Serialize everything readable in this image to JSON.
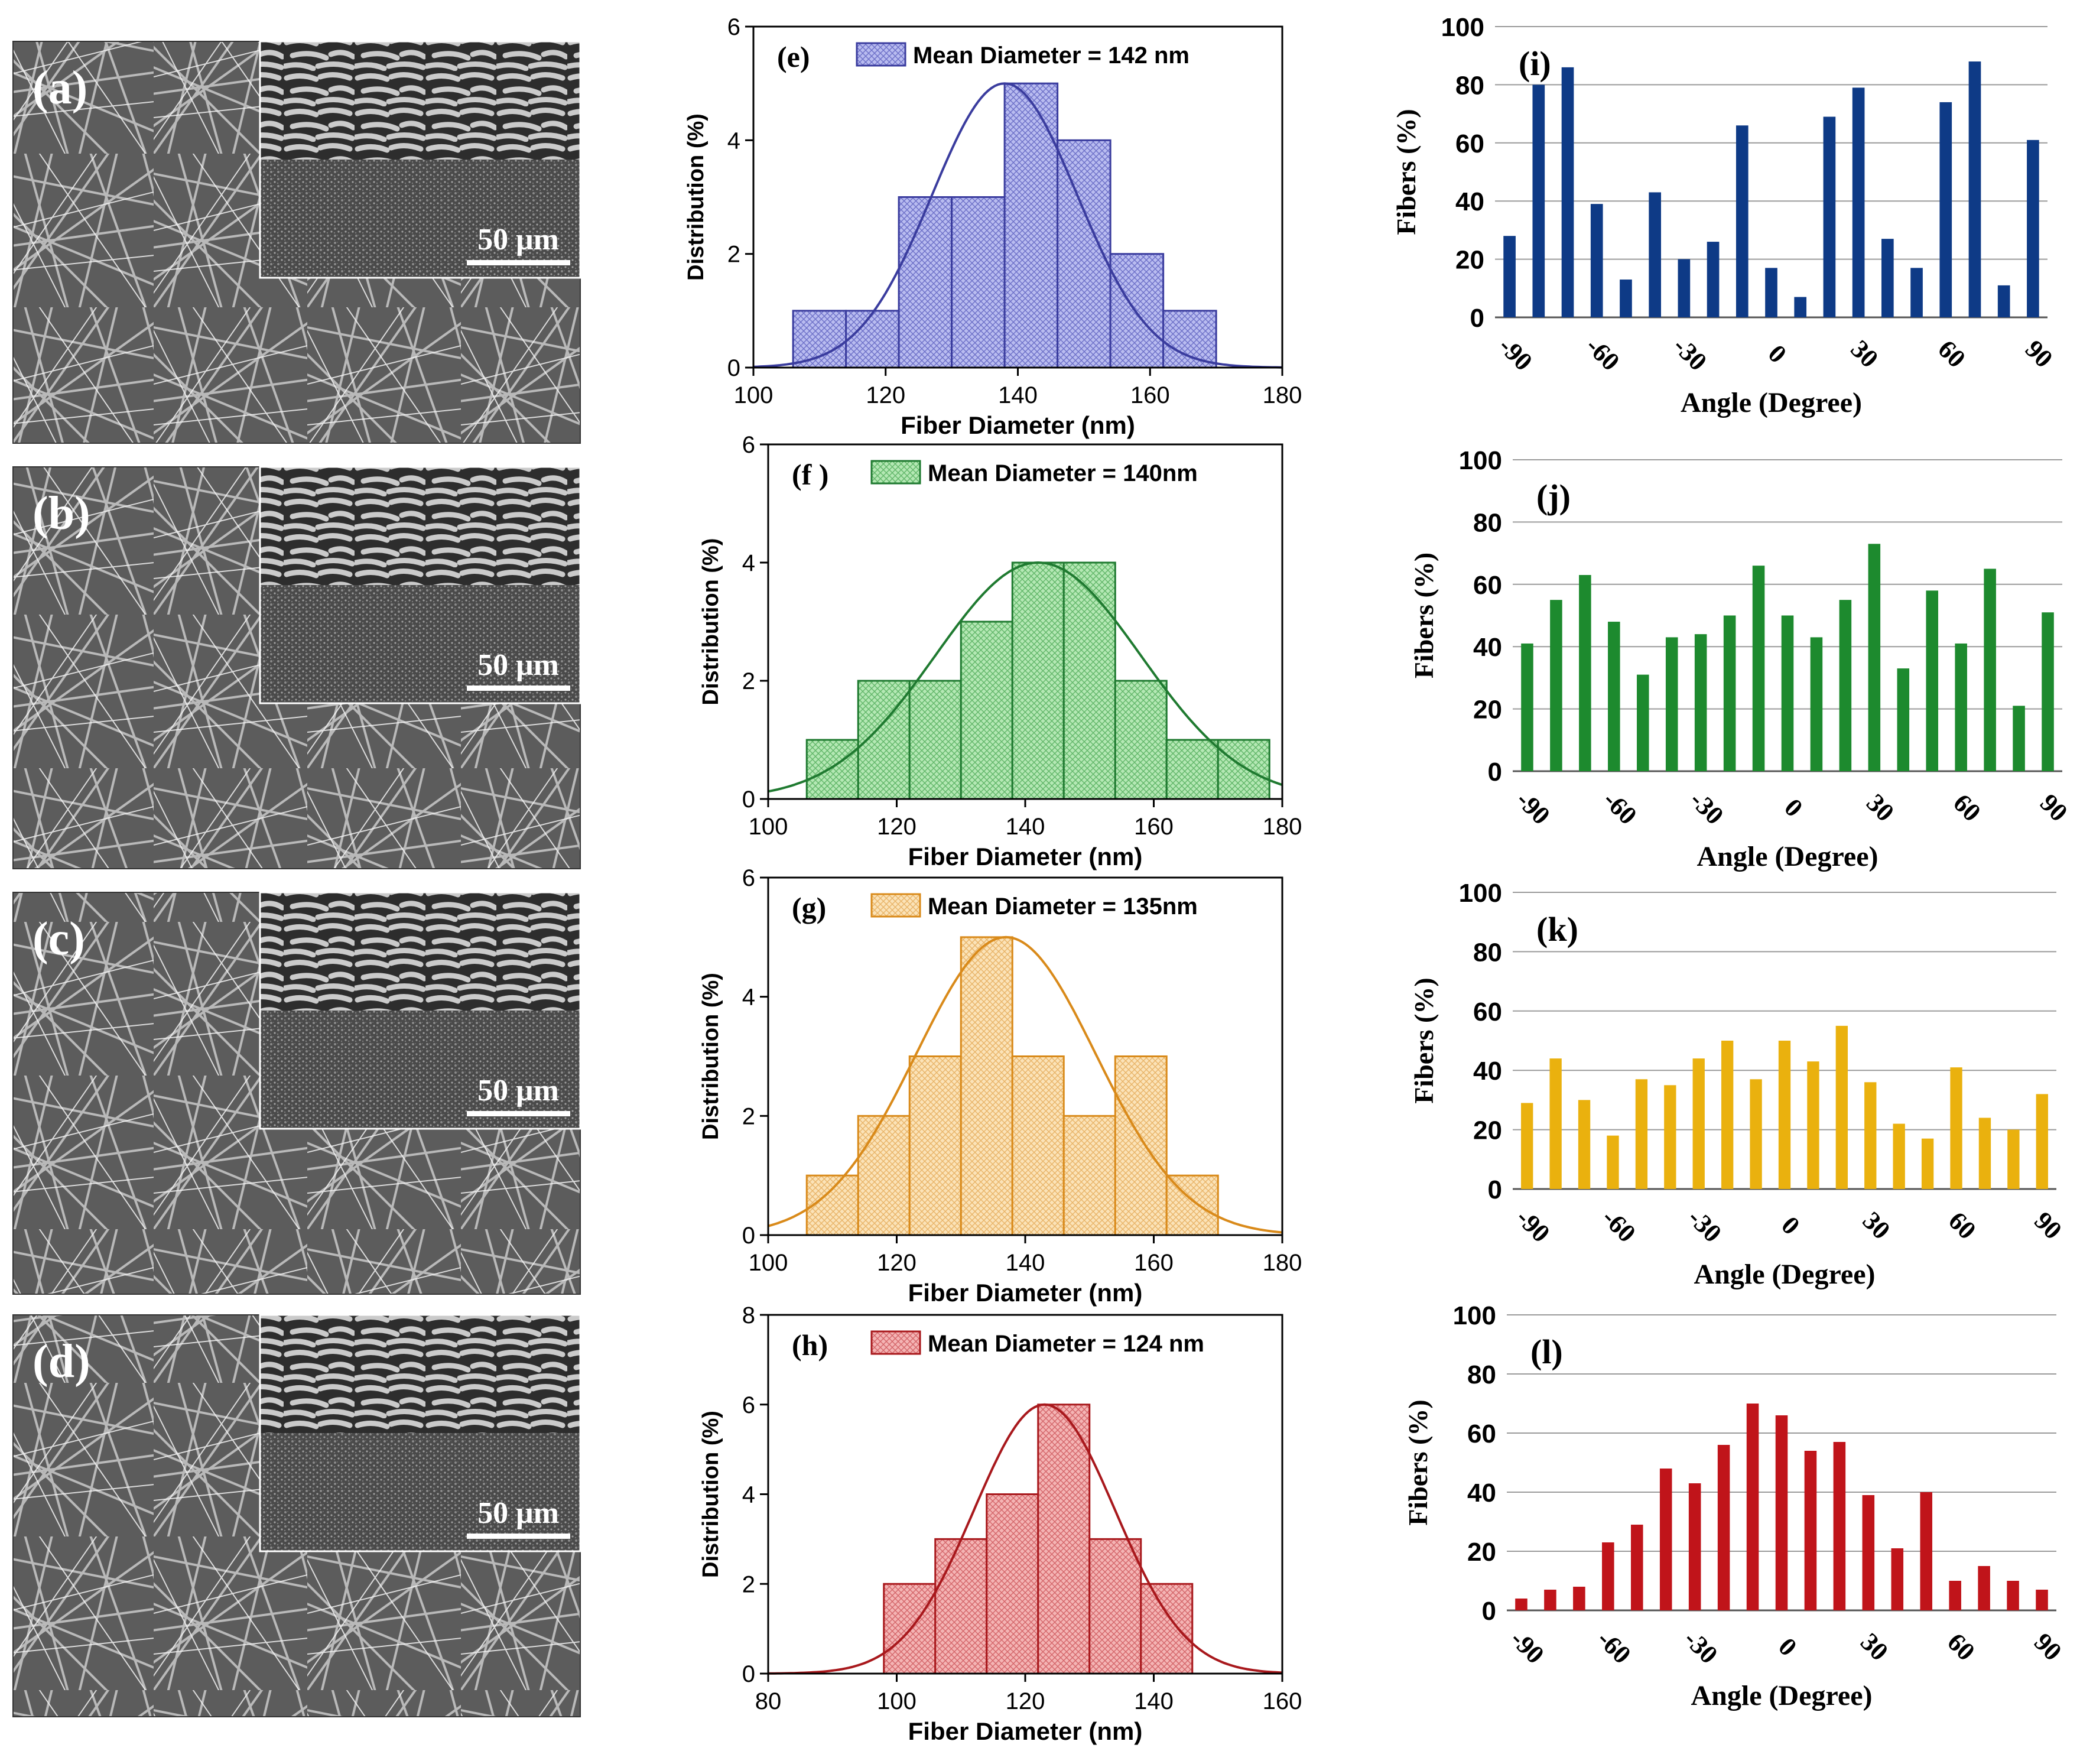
{
  "sem_panels": [
    {
      "label": "(a)",
      "scale_bar": "50 μm"
    },
    {
      "label": "(b)",
      "scale_bar": "50 μm"
    },
    {
      "label": "(c)",
      "scale_bar": "50 μm"
    },
    {
      "label": "(d)",
      "scale_bar": "50 μm"
    }
  ],
  "colors": {
    "blue": "#3a3c9e",
    "blue_fill": "#b9bcf0",
    "green": "#1f7a30",
    "green_fill": "#b4e8b4",
    "orange": "#d98a1a",
    "orange_fill": "#fbe3b8",
    "red": "#a8181c",
    "red_fill": "#f4b4b4",
    "bar_blue": "#0e3a86",
    "bar_green": "#1d8a2e",
    "bar_yellow": "#eab10e",
    "bar_red": "#c0141a",
    "grid": "#9a9a9a"
  },
  "chart_data": [
    {
      "id": "e",
      "type": "bar",
      "panel_label": "(e)",
      "legend": "Mean Diameter = 142 nm",
      "xlabel": "Fiber Diameter (nm)",
      "ylabel": "Distribution (%)",
      "xlim": [
        100,
        180
      ],
      "ylim": [
        0,
        6
      ],
      "xticks": [
        100,
        120,
        140,
        160,
        180
      ],
      "yticks": [
        0,
        2,
        4,
        6
      ],
      "bins": [
        [
          106,
          114,
          1
        ],
        [
          114,
          122,
          1
        ],
        [
          122,
          130,
          3
        ],
        [
          130,
          138,
          3
        ],
        [
          138,
          146,
          5
        ],
        [
          146,
          154,
          4
        ],
        [
          154,
          162,
          2
        ],
        [
          162,
          170,
          1
        ]
      ],
      "fit": {
        "mean": 138,
        "sigma": 11,
        "peak": 5.0
      }
    },
    {
      "id": "f",
      "type": "bar",
      "panel_label": "(f )",
      "legend": "Mean Diameter = 140nm",
      "xlabel": "Fiber Diameter (nm)",
      "ylabel": "Distribution (%)",
      "xlim": [
        100,
        180
      ],
      "ylim": [
        0,
        6
      ],
      "xticks": [
        100,
        120,
        140,
        160,
        180
      ],
      "yticks": [
        0,
        2,
        4,
        6
      ],
      "bins": [
        [
          106,
          114,
          1
        ],
        [
          114,
          122,
          2
        ],
        [
          122,
          130,
          2
        ],
        [
          130,
          138,
          3
        ],
        [
          138,
          146,
          4
        ],
        [
          146,
          154,
          4
        ],
        [
          154,
          162,
          2
        ],
        [
          162,
          170,
          1
        ],
        [
          170,
          178,
          1
        ]
      ],
      "fit": {
        "mean": 142,
        "sigma": 16,
        "peak": 4.0
      }
    },
    {
      "id": "g",
      "type": "bar",
      "panel_label": "(g)",
      "legend": "Mean Diameter = 135nm",
      "xlabel": "Fiber Diameter (nm)",
      "ylabel": "Distribution (%)",
      "xlim": [
        100,
        180
      ],
      "ylim": [
        0,
        6
      ],
      "xticks": [
        100,
        120,
        140,
        160,
        180
      ],
      "yticks": [
        0,
        2,
        4,
        6
      ],
      "bins": [
        [
          106,
          114,
          1
        ],
        [
          114,
          122,
          2
        ],
        [
          122,
          130,
          3
        ],
        [
          130,
          138,
          5
        ],
        [
          138,
          146,
          3
        ],
        [
          146,
          154,
          2
        ],
        [
          154,
          162,
          3
        ],
        [
          162,
          170,
          1
        ]
      ],
      "fit": {
        "mean": 137,
        "sigma": 14,
        "peak": 5.0
      }
    },
    {
      "id": "h",
      "type": "bar",
      "panel_label": "(h)",
      "legend": "Mean Diameter = 124 nm",
      "xlabel": "Fiber Diameter (nm)",
      "ylabel": "Distribution (%)",
      "xlim": [
        80,
        160
      ],
      "ylim": [
        0,
        8
      ],
      "xticks": [
        80,
        100,
        120,
        140,
        160
      ],
      "yticks": [
        0,
        2,
        4,
        6,
        8
      ],
      "bins": [
        [
          98,
          106,
          2
        ],
        [
          106,
          114,
          3
        ],
        [
          114,
          122,
          4
        ],
        [
          122,
          130,
          6
        ],
        [
          130,
          138,
          3
        ],
        [
          138,
          146,
          2
        ]
      ],
      "fit": {
        "mean": 123,
        "sigma": 11,
        "peak": 6.0
      }
    },
    {
      "id": "i",
      "type": "bar",
      "panel_label": "(i)",
      "xlabel": "Angle (Degree)",
      "ylabel": "Fibers (%)",
      "ylim": [
        0,
        100
      ],
      "yticks": [
        0,
        20,
        40,
        60,
        80,
        100
      ],
      "xtick_labels": [
        "-90",
        "-60",
        "-30",
        "0",
        "30",
        "60",
        "90"
      ],
      "values": [
        28,
        80,
        86,
        39,
        13,
        43,
        20,
        26,
        66,
        17,
        7,
        69,
        79,
        27,
        17,
        74,
        88,
        11,
        61
      ]
    },
    {
      "id": "j",
      "type": "bar",
      "panel_label": "(j)",
      "xlabel": "Angle (Degree)",
      "ylabel": "Fibers (%)",
      "ylim": [
        0,
        100
      ],
      "yticks": [
        0,
        20,
        40,
        60,
        80,
        100
      ],
      "xtick_labels": [
        "-90",
        "-60",
        "-30",
        "0",
        "30",
        "60",
        "90"
      ],
      "values": [
        41,
        55,
        63,
        48,
        31,
        43,
        44,
        50,
        66,
        50,
        43,
        55,
        73,
        33,
        58,
        41,
        65,
        21,
        51
      ]
    },
    {
      "id": "k",
      "type": "bar",
      "panel_label": "(k)",
      "xlabel": "Angle (Degree)",
      "ylabel": "Fibers (%)",
      "ylim": [
        0,
        100
      ],
      "yticks": [
        0,
        20,
        40,
        60,
        80,
        100
      ],
      "xtick_labels": [
        "-90",
        "-60",
        "-30",
        "0",
        "30",
        "60",
        "90"
      ],
      "values": [
        29,
        44,
        30,
        18,
        37,
        35,
        44,
        50,
        37,
        50,
        43,
        55,
        36,
        22,
        17,
        41,
        24,
        20,
        32
      ]
    },
    {
      "id": "l",
      "type": "bar",
      "panel_label": "(l)",
      "xlabel": "Angle (Degree)",
      "ylabel": "Fibers (%)",
      "ylim": [
        0,
        100
      ],
      "yticks": [
        0,
        20,
        40,
        60,
        80,
        100
      ],
      "xtick_labels": [
        "-90",
        "-60",
        "-30",
        "0",
        "30",
        "60",
        "90"
      ],
      "values": [
        4,
        7,
        8,
        23,
        29,
        48,
        43,
        56,
        70,
        66,
        54,
        57,
        39,
        21,
        40,
        10,
        15,
        10,
        7
      ]
    }
  ]
}
